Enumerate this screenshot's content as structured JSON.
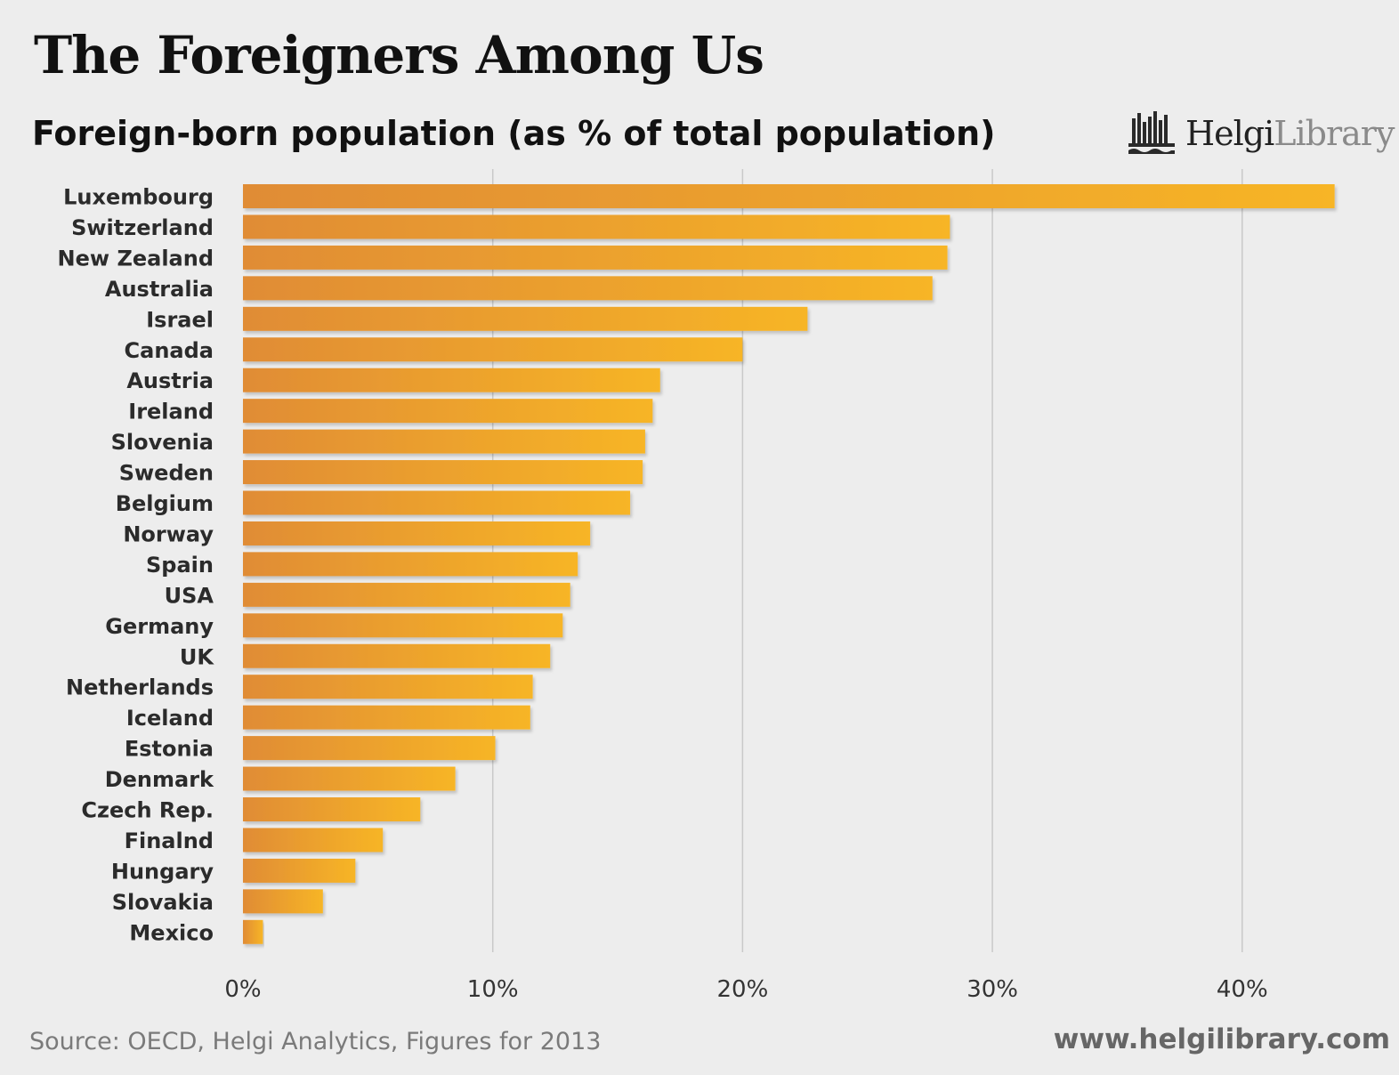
{
  "header": {
    "title": "The Foreigners Among Us",
    "subtitle": "Foreign-born population (as % of total population)"
  },
  "logo": {
    "brand_bold": "Helgi",
    "brand_light": "Library",
    "icon": "library-logo-icon"
  },
  "footer": {
    "source": "Source: OECD, Helgi Analytics, Figures for 2013",
    "website": "www.helgilibrary.com"
  },
  "colors": {
    "bar_start": "#e08c35",
    "bar_end": "#f7b526",
    "grid": "#c9c9c9",
    "background": "#ededed"
  },
  "chart_data": {
    "type": "bar",
    "orientation": "horizontal",
    "title": "Foreign-born population (as % of total population)",
    "xlabel": "",
    "ylabel": "",
    "xlim": [
      0,
      45
    ],
    "xticks": [
      0,
      10,
      20,
      30,
      40
    ],
    "tick_labels": [
      "0%",
      "10%",
      "20%",
      "30%",
      "40%"
    ],
    "grid": true,
    "categories": [
      "Luxembourg",
      "Switzerland",
      "New Zealand",
      "Australia",
      "Israel",
      "Canada",
      "Austria",
      "Ireland",
      "Slovenia",
      "Sweden",
      "Belgium",
      "Norway",
      "Spain",
      "USA",
      "Germany",
      "UK",
      "Netherlands",
      "Iceland",
      "Estonia",
      "Denmark",
      "Czech Rep.",
      "Finalnd",
      "Hungary",
      "Slovakia",
      "Mexico"
    ],
    "values": [
      43.7,
      28.3,
      28.2,
      27.6,
      22.6,
      20.0,
      16.7,
      16.4,
      16.1,
      16.0,
      15.5,
      13.9,
      13.4,
      13.1,
      12.8,
      12.3,
      11.6,
      11.5,
      10.1,
      8.5,
      7.1,
      5.6,
      4.5,
      3.2,
      0.8
    ]
  }
}
